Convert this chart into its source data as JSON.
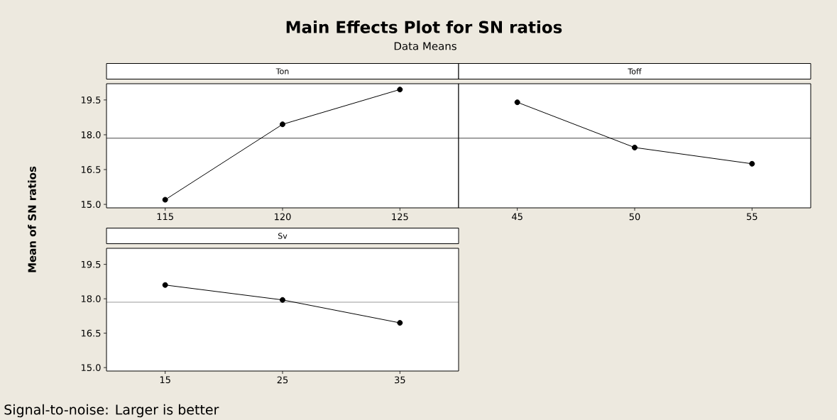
{
  "chart_data": [
    {
      "type": "other",
      "title": "Main Effects Plot for SN ratios",
      "subtitle": "Data Means",
      "annotations": [
        "Signal-to-noise: Larger is better"
      ]
    },
    {
      "type": "line",
      "title": "Ton",
      "ylabel": "Mean of SN ratios",
      "x": [
        115,
        120,
        125
      ],
      "values": [
        15.2,
        18.45,
        19.95
      ],
      "color": "#000000",
      "marker": "circle",
      "line_style": "solid",
      "xlim": [
        112.5,
        127.5
      ],
      "xticks": [
        115,
        120,
        125
      ],
      "ylim": [
        14.85,
        20.2
      ],
      "yticks": [
        {
          "value": 15,
          "label": "15.0"
        },
        {
          "value": 16.5,
          "label": "16.5"
        },
        {
          "value": 18,
          "label": "18.0"
        },
        {
          "value": 19.5,
          "label": "19.5"
        }
      ],
      "ref_lines": [
        {
          "axis": "y",
          "value": 17.85,
          "color": "#000000"
        }
      ]
    },
    {
      "type": "line",
      "title": "Toff",
      "x": [
        45,
        50,
        55
      ],
      "values": [
        19.4,
        17.45,
        16.75
      ],
      "color": "#000000",
      "marker": "circle",
      "line_style": "solid",
      "xlim": [
        42.5,
        57.5
      ],
      "xticks": [
        45,
        50,
        55
      ],
      "ylim": [
        14.85,
        20.2
      ],
      "tick_labels": "x",
      "ref_lines": [
        {
          "axis": "y",
          "value": 17.85,
          "color": "#000000"
        }
      ]
    },
    {
      "type": "line",
      "title": "Sv",
      "x": [
        15,
        25,
        35
      ],
      "values": [
        18.6,
        17.95,
        16.95
      ],
      "color": "#000000",
      "marker": "circle",
      "line_style": "solid",
      "xlim": [
        10,
        40
      ],
      "xticks": [
        15,
        25,
        35
      ],
      "ylim": [
        14.85,
        20.2
      ],
      "yticks": [
        {
          "value": 15,
          "label": "15.0"
        },
        {
          "value": 16.5,
          "label": "16.5"
        },
        {
          "value": 18,
          "label": "18.0"
        },
        {
          "value": 19.5,
          "label": "19.5"
        }
      ],
      "ref_lines": [
        {
          "axis": "y",
          "value": 17.85,
          "color": "#000000"
        }
      ]
    }
  ]
}
